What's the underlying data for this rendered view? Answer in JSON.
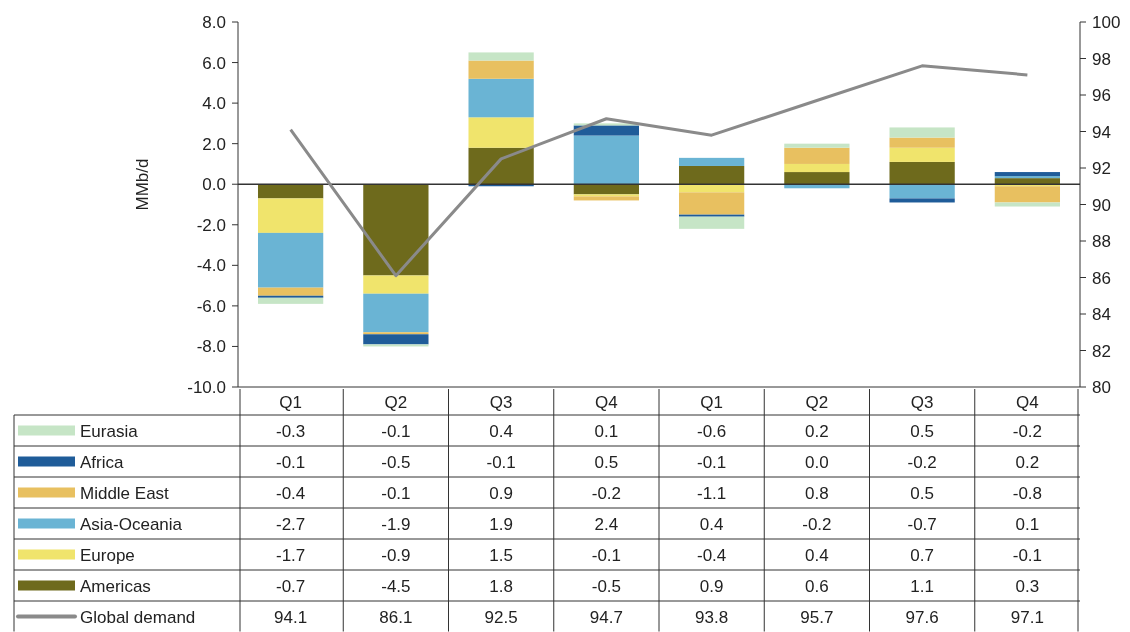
{
  "chart_data": {
    "type": "bar",
    "stacked": true,
    "ylabel": "MMb/d",
    "categories": [
      "Q1",
      "Q2",
      "Q3",
      "Q4",
      "Q1",
      "Q2",
      "Q3",
      "Q4"
    ],
    "ylim": [
      -10,
      8
    ],
    "yticks": [
      {
        "value": -10,
        "label": "-10.0"
      },
      {
        "value": -8,
        "label": "-8.0"
      },
      {
        "value": -6,
        "label": "-6.0"
      },
      {
        "value": -4,
        "label": "-4.0"
      },
      {
        "value": -2,
        "label": "-2.0"
      },
      {
        "value": 0,
        "label": "0.0"
      },
      {
        "value": 2,
        "label": "2.0"
      },
      {
        "value": 4,
        "label": "4.0"
      },
      {
        "value": 6,
        "label": "6.0"
      },
      {
        "value": 8,
        "label": "8.0"
      }
    ],
    "y2lim": [
      80,
      100
    ],
    "y2ticks": [
      80,
      82,
      84,
      86,
      88,
      90,
      92,
      94,
      96,
      98,
      100
    ],
    "grid": false,
    "ref_lines": [
      {
        "axis": "y",
        "value": 0,
        "color": "#333333"
      }
    ],
    "legend": "bottom",
    "data_labels": true,
    "marker": "none",
    "series": [
      {
        "name": "Americas",
        "color": "#6e6a1c",
        "values": [
          -0.7,
          -4.5,
          1.8,
          -0.5,
          0.9,
          0.6,
          1.1,
          0.3
        ]
      },
      {
        "name": "Europe",
        "color": "#f0e46c",
        "values": [
          -1.7,
          -0.9,
          1.5,
          -0.1,
          -0.4,
          0.4,
          0.7,
          -0.1
        ]
      },
      {
        "name": "Asia-Oceania",
        "color": "#6ab4d4",
        "values": [
          -2.7,
          -1.9,
          1.9,
          2.4,
          0.4,
          -0.2,
          -0.7,
          0.1
        ]
      },
      {
        "name": "Middle East",
        "color": "#e8c060",
        "values": [
          -0.4,
          -0.1,
          0.9,
          -0.2,
          -1.1,
          0.8,
          0.5,
          -0.8
        ]
      },
      {
        "name": "Africa",
        "color": "#1f5c99",
        "values": [
          -0.1,
          -0.5,
          -0.1,
          0.5,
          -0.1,
          0.0,
          -0.2,
          0.2
        ],
        "value_labels": [
          "-0.1",
          "-0.5",
          "-0.1",
          "0.5",
          "-0.1",
          "0.0",
          "-0.2",
          "0.2"
        ]
      },
      {
        "name": "Eurasia",
        "color": "#c6e5c6",
        "values": [
          -0.3,
          -0.1,
          0.4,
          0.1,
          -0.6,
          0.2,
          0.5,
          -0.2
        ]
      },
      {
        "name": "Global demand",
        "type": "line",
        "axis": "y2",
        "color": "#8a8a8a",
        "values": [
          94.1,
          86.1,
          92.5,
          94.7,
          93.8,
          95.7,
          97.6,
          97.1
        ]
      }
    ]
  }
}
